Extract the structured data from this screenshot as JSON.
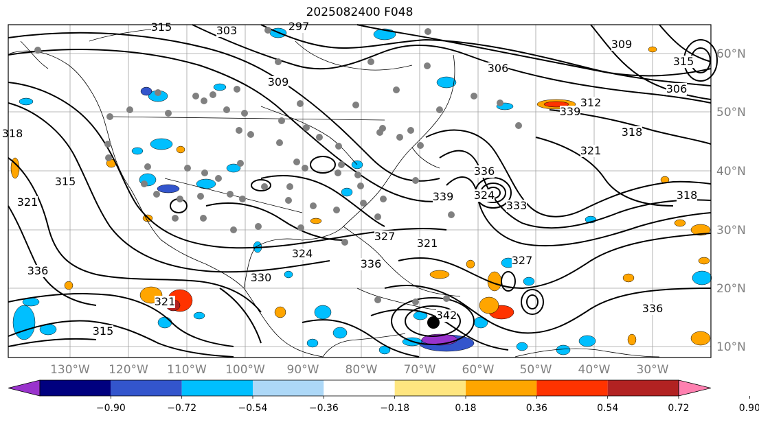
{
  "title": "2025082400 F048",
  "map": {
    "lon_ticks": [
      "130°W",
      "120°W",
      "110°W",
      "100°W",
      "90°W",
      "80°W",
      "70°W",
      "60°W",
      "50°W",
      "40°W",
      "30°W"
    ],
    "lat_ticks": [
      "60°N",
      "50°N",
      "40°N",
      "30°N",
      "20°N",
      "10°N"
    ],
    "contour_labels": [
      "315",
      "303",
      "297",
      "309",
      "306",
      "306",
      "315",
      "309",
      "318",
      "312",
      "318",
      "321",
      "315",
      "321",
      "336",
      "339",
      "333",
      "318",
      "321",
      "324",
      "336",
      "321",
      "315",
      "342",
      "336",
      "327",
      "327",
      "324",
      "339",
      "336",
      "330"
    ],
    "colors": {
      "contour": "#000000",
      "grid": "#a0a0a0",
      "axis_label": "#808080",
      "station": "#808080"
    }
  },
  "colorbar": {
    "ticks": [
      "−0.90",
      "−0.72",
      "−0.54",
      "−0.36",
      "−0.18",
      "0.18",
      "0.36",
      "0.54",
      "0.72",
      "0.90"
    ],
    "colors": [
      "#9933cc",
      "#00007f",
      "#3355cc",
      "#00bfff",
      "#add8f7",
      "#ffffff",
      "#ffe680",
      "#ffa500",
      "#ff3300",
      "#b22222",
      "#ff80b0"
    ]
  }
}
